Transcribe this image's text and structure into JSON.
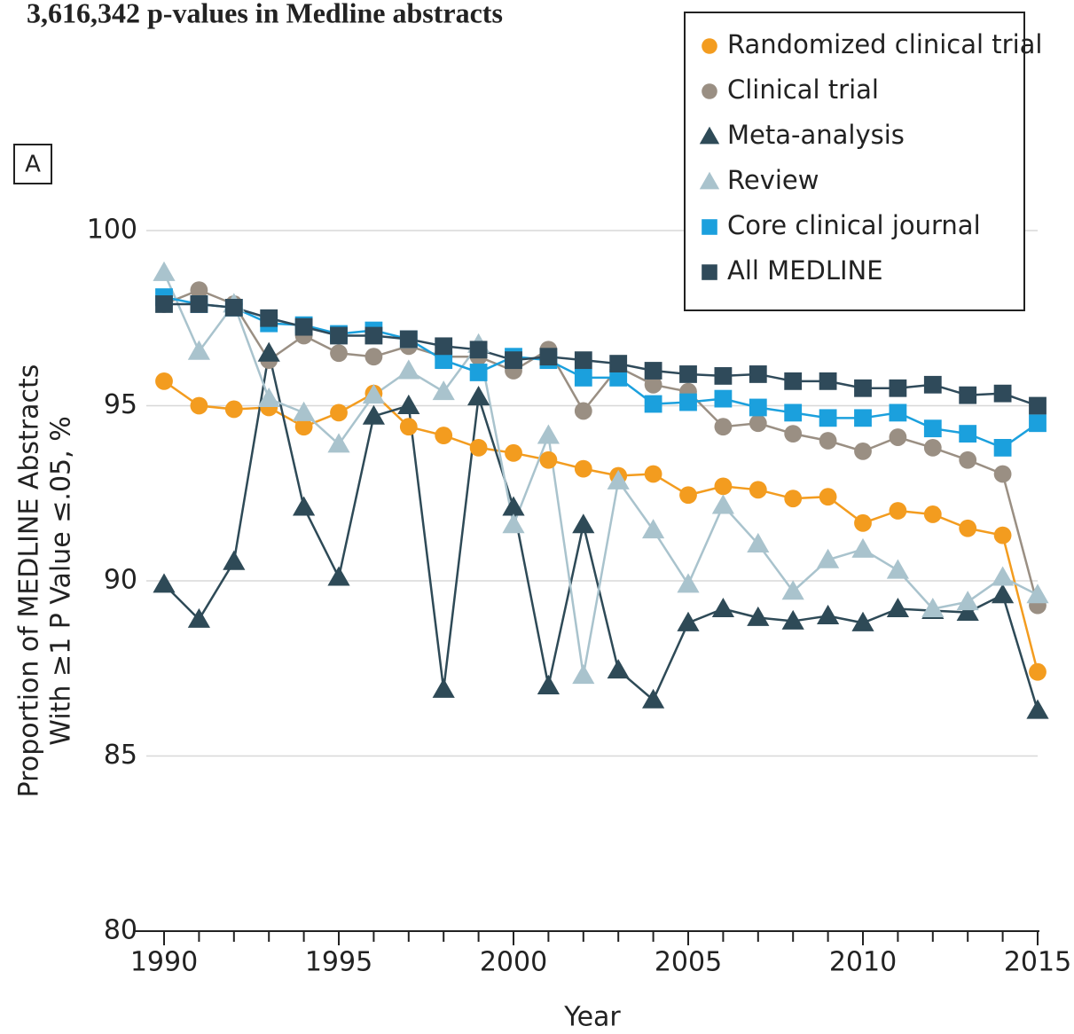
{
  "chart_data": {
    "type": "line",
    "title": "3,616,342 p-values in Medline abstracts",
    "panel_label": "A",
    "x_label": "Year",
    "y_label": [
      "Proportion of MEDLINE Abstracts",
      "With ≥1 P Value ≤.05, %"
    ],
    "x": [
      1990,
      1991,
      1992,
      1993,
      1994,
      1995,
      1996,
      1997,
      1998,
      1999,
      2000,
      2001,
      2002,
      2003,
      2004,
      2005,
      2006,
      2007,
      2008,
      2009,
      2010,
      2011,
      2012,
      2013,
      2014,
      2015
    ],
    "xlim": [
      1990,
      2015
    ],
    "xticks": [
      1990,
      1995,
      2000,
      2005,
      2010,
      2015
    ],
    "ylim": [
      80,
      100
    ],
    "yticks": [
      80,
      85,
      90,
      95,
      100
    ],
    "grid": true,
    "legend": "top-right",
    "series": [
      {
        "name": "Randomized clinical trial",
        "color": "#f39c1f",
        "marker": "circle",
        "values": [
          95.7,
          95.0,
          94.9,
          94.95,
          94.4,
          94.8,
          95.35,
          94.4,
          94.15,
          93.8,
          93.65,
          93.45,
          93.2,
          93.0,
          93.05,
          92.45,
          92.7,
          92.6,
          92.35,
          92.4,
          91.65,
          92.0,
          91.9,
          91.5,
          91.3,
          87.4
        ]
      },
      {
        "name": "Clinical trial",
        "color": "#9a8f83",
        "marker": "circle",
        "values": [
          97.9,
          98.3,
          97.9,
          96.3,
          97.0,
          96.5,
          96.4,
          96.7,
          96.4,
          96.4,
          96.0,
          96.6,
          94.85,
          96.1,
          95.6,
          95.4,
          94.4,
          94.5,
          94.2,
          94.0,
          93.7,
          94.1,
          93.8,
          93.45,
          93.05,
          89.3
        ]
      },
      {
        "name": "Meta-analysis",
        "color": "#2e4a57",
        "marker": "triangle",
        "values": [
          89.9,
          88.9,
          90.55,
          96.5,
          92.1,
          90.1,
          94.7,
          95.0,
          86.9,
          95.25,
          92.1,
          87.0,
          91.6,
          87.45,
          86.6,
          88.8,
          89.2,
          88.95,
          88.85,
          89.0,
          88.8,
          89.2,
          89.15,
          89.1,
          89.6,
          86.3
        ]
      },
      {
        "name": "Review",
        "color": "#a9c3cd",
        "marker": "triangle",
        "values": [
          98.8,
          96.55,
          97.9,
          95.2,
          94.8,
          93.9,
          95.3,
          96.0,
          95.4,
          96.75,
          91.6,
          94.15,
          87.3,
          92.85,
          91.45,
          89.9,
          92.15,
          91.05,
          89.7,
          90.6,
          90.9,
          90.3,
          89.2,
          89.4,
          90.1,
          89.6
        ]
      },
      {
        "name": "Core clinical journal",
        "color": "#1ba0dd",
        "marker": "square",
        "values": [
          98.1,
          97.9,
          97.8,
          97.35,
          97.3,
          97.05,
          97.15,
          96.9,
          96.3,
          95.95,
          96.4,
          96.3,
          95.8,
          95.8,
          95.05,
          95.1,
          95.2,
          94.95,
          94.8,
          94.65,
          94.65,
          94.8,
          94.35,
          94.2,
          93.8,
          94.5
        ]
      },
      {
        "name": "All MEDLINE",
        "color": "#2f4a5a",
        "marker": "square",
        "values": [
          97.9,
          97.9,
          97.8,
          97.5,
          97.25,
          97.0,
          97.0,
          96.9,
          96.7,
          96.6,
          96.3,
          96.4,
          96.3,
          96.2,
          96.0,
          95.9,
          95.85,
          95.9,
          95.7,
          95.7,
          95.5,
          95.5,
          95.6,
          95.3,
          95.35,
          95.0
        ]
      }
    ]
  }
}
